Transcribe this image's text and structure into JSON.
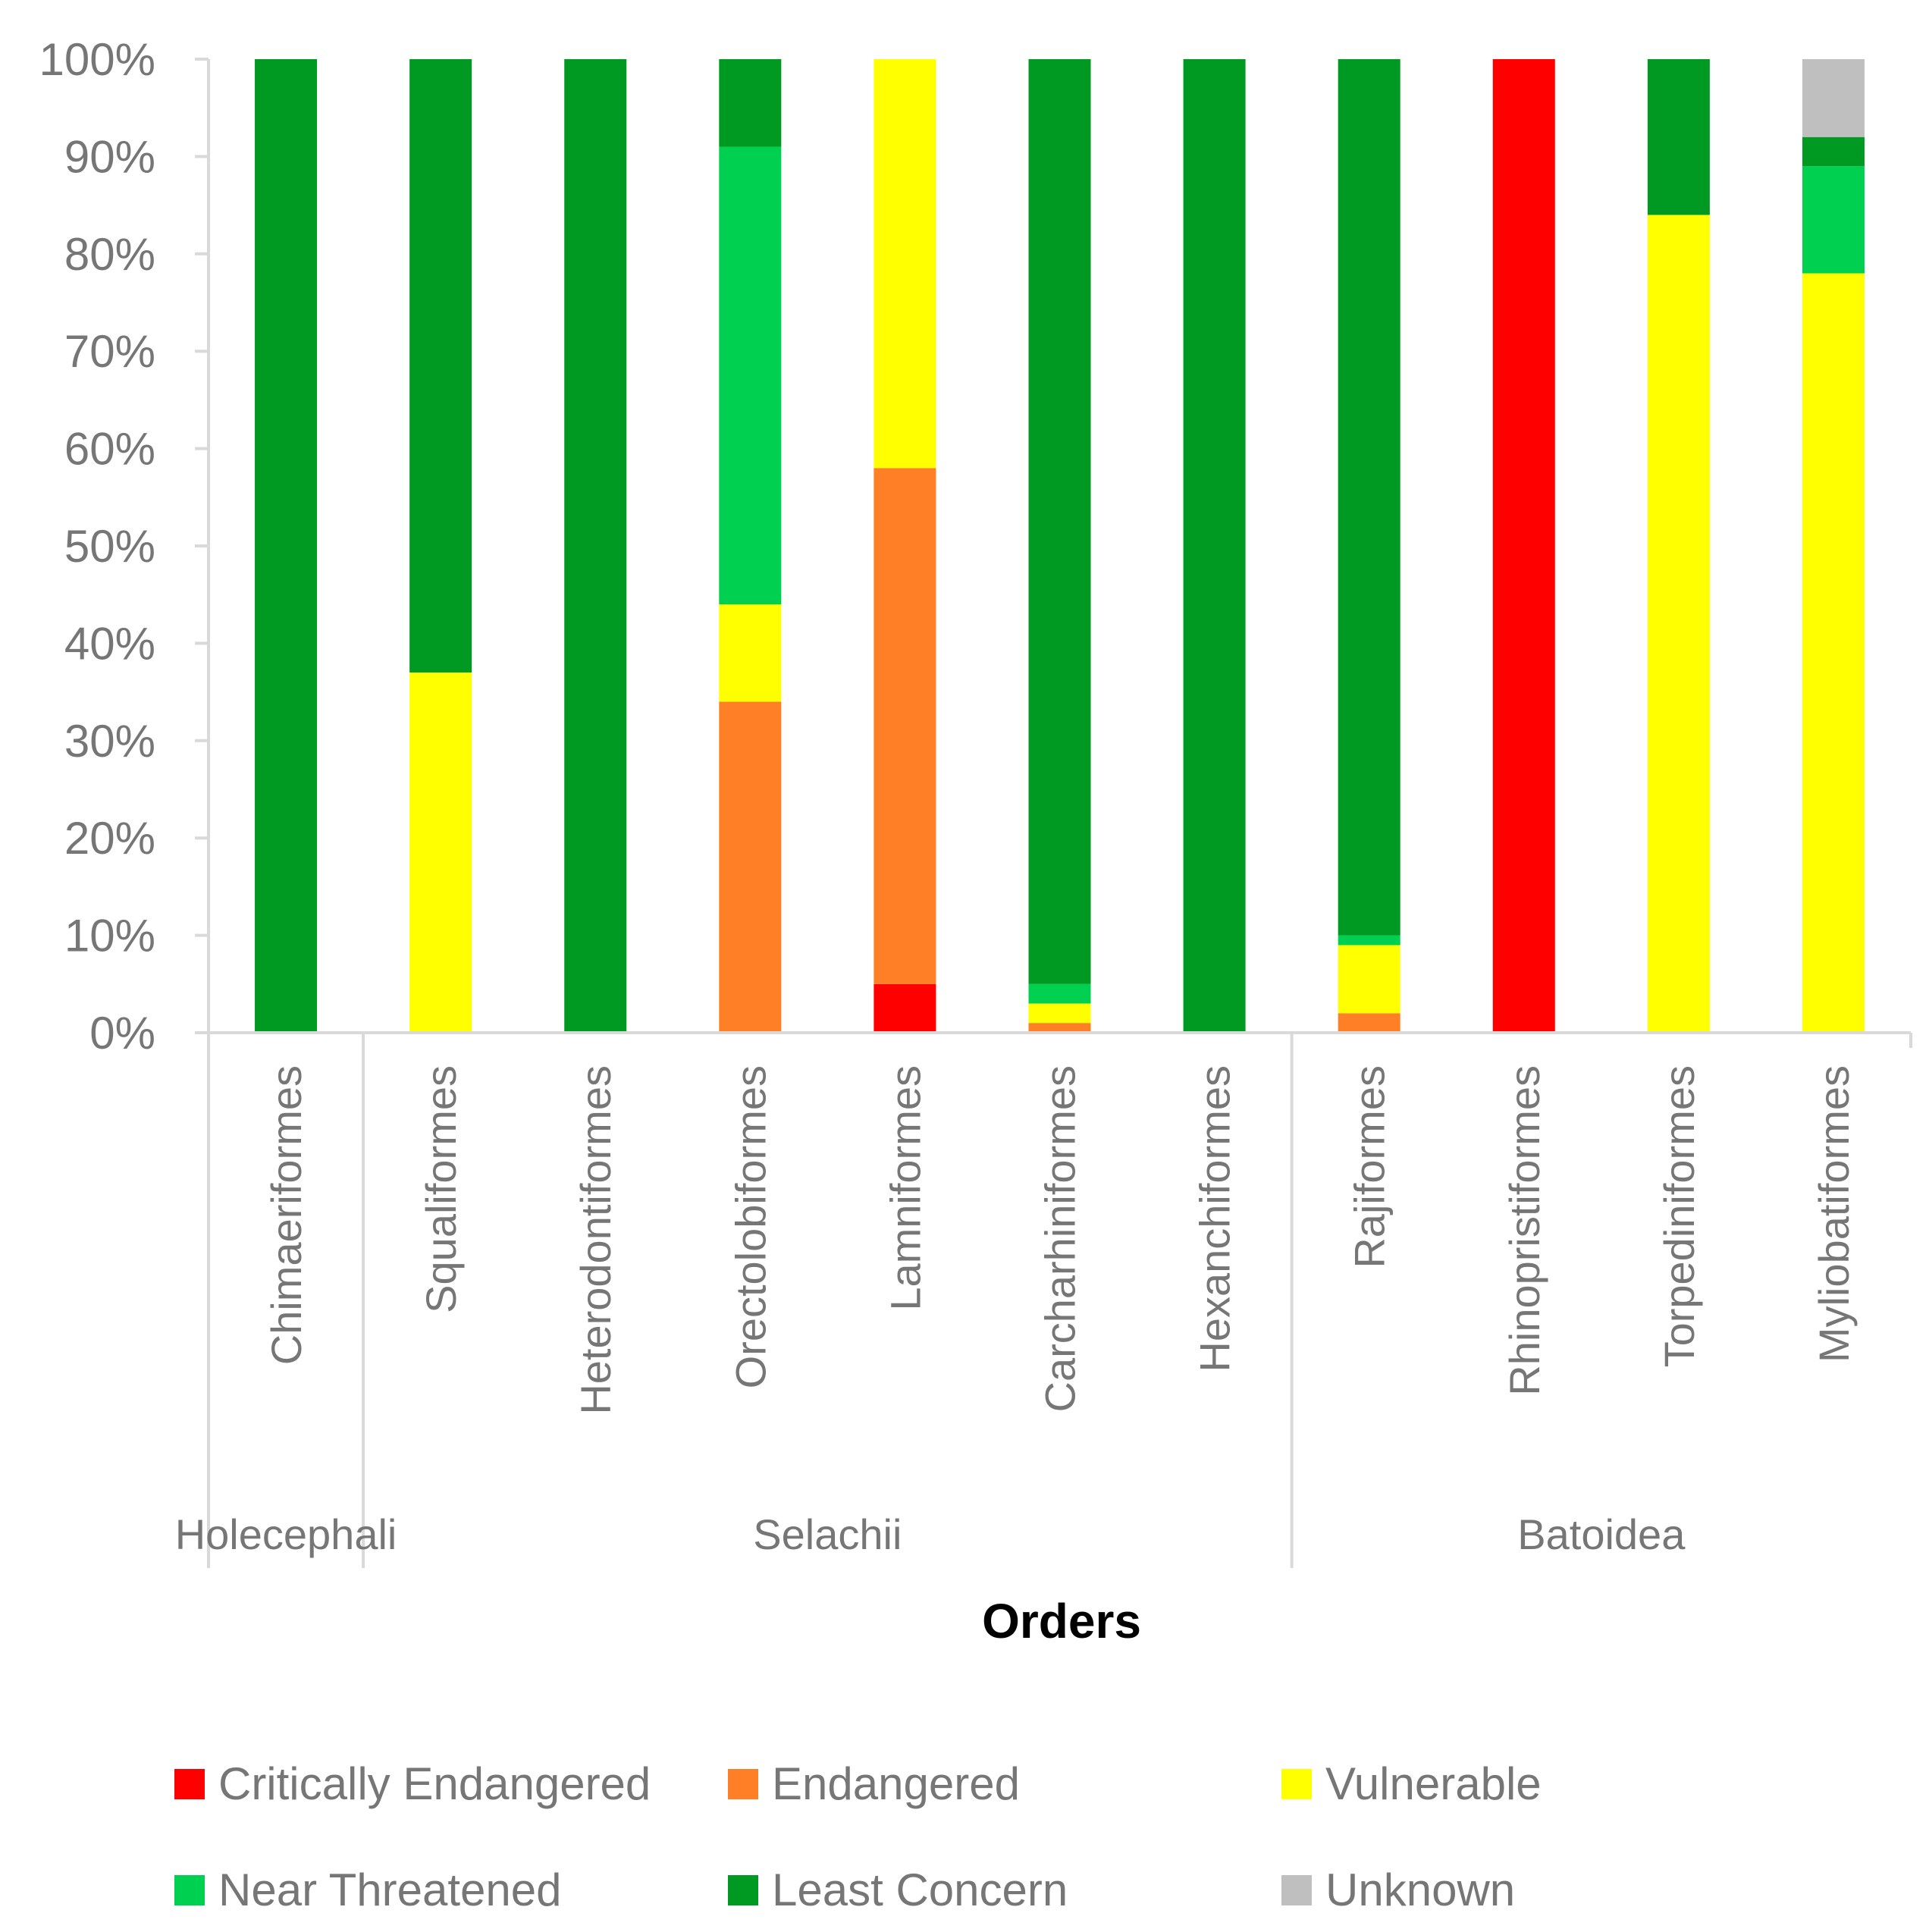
{
  "chart_data": {
    "type": "bar",
    "stacked": true,
    "normalized": true,
    "title": "",
    "xlabel": "Orders",
    "ylabel": "",
    "ylim": [
      0,
      100
    ],
    "yticks": [
      "0%",
      "10%",
      "20%",
      "30%",
      "40%",
      "50%",
      "60%",
      "70%",
      "80%",
      "90%",
      "100%"
    ],
    "categories": [
      "Chimaeriformes",
      "Squaliformes",
      "Heterodontiformes",
      "Orectolobiformes",
      "Lamniformes",
      "Carcharhiniformes",
      "Hexanchiformes",
      "Rajiformes",
      "Rhinopristiformes",
      "Torpediniformes",
      "Myliobatiformes"
    ],
    "groups": [
      {
        "name": "Holecephali",
        "count": 1
      },
      {
        "name": "Selachii",
        "count": 6
      },
      {
        "name": "Batoidea",
        "count": 4
      }
    ],
    "series": [
      {
        "name": "Critically Endangered",
        "color": "#FF0000",
        "values": [
          0,
          0,
          0,
          0,
          5,
          0,
          0,
          0,
          100,
          0,
          0
        ]
      },
      {
        "name": "Endangered",
        "color": "#FF7F27",
        "values": [
          0,
          0,
          0,
          34,
          53,
          1,
          0,
          2,
          0,
          0,
          0
        ]
      },
      {
        "name": "Vulnerable",
        "color": "#FFFF00",
        "values": [
          0,
          37,
          0,
          10,
          42,
          2,
          0,
          7,
          0,
          84,
          78
        ]
      },
      {
        "name": "Near Threatened",
        "color": "#00D050",
        "values": [
          0,
          0,
          0,
          47,
          0,
          2,
          0,
          1,
          0,
          0,
          11
        ]
      },
      {
        "name": "Least Concern",
        "color": "#009922",
        "values": [
          100,
          63,
          100,
          9,
          0,
          95,
          100,
          90,
          0,
          16,
          3
        ]
      },
      {
        "name": "Unknown",
        "color": "#BFBFBF",
        "values": [
          0,
          0,
          0,
          0,
          0,
          0,
          0,
          0,
          0,
          0,
          8
        ]
      }
    ],
    "legend": "bottom",
    "grid": false
  }
}
